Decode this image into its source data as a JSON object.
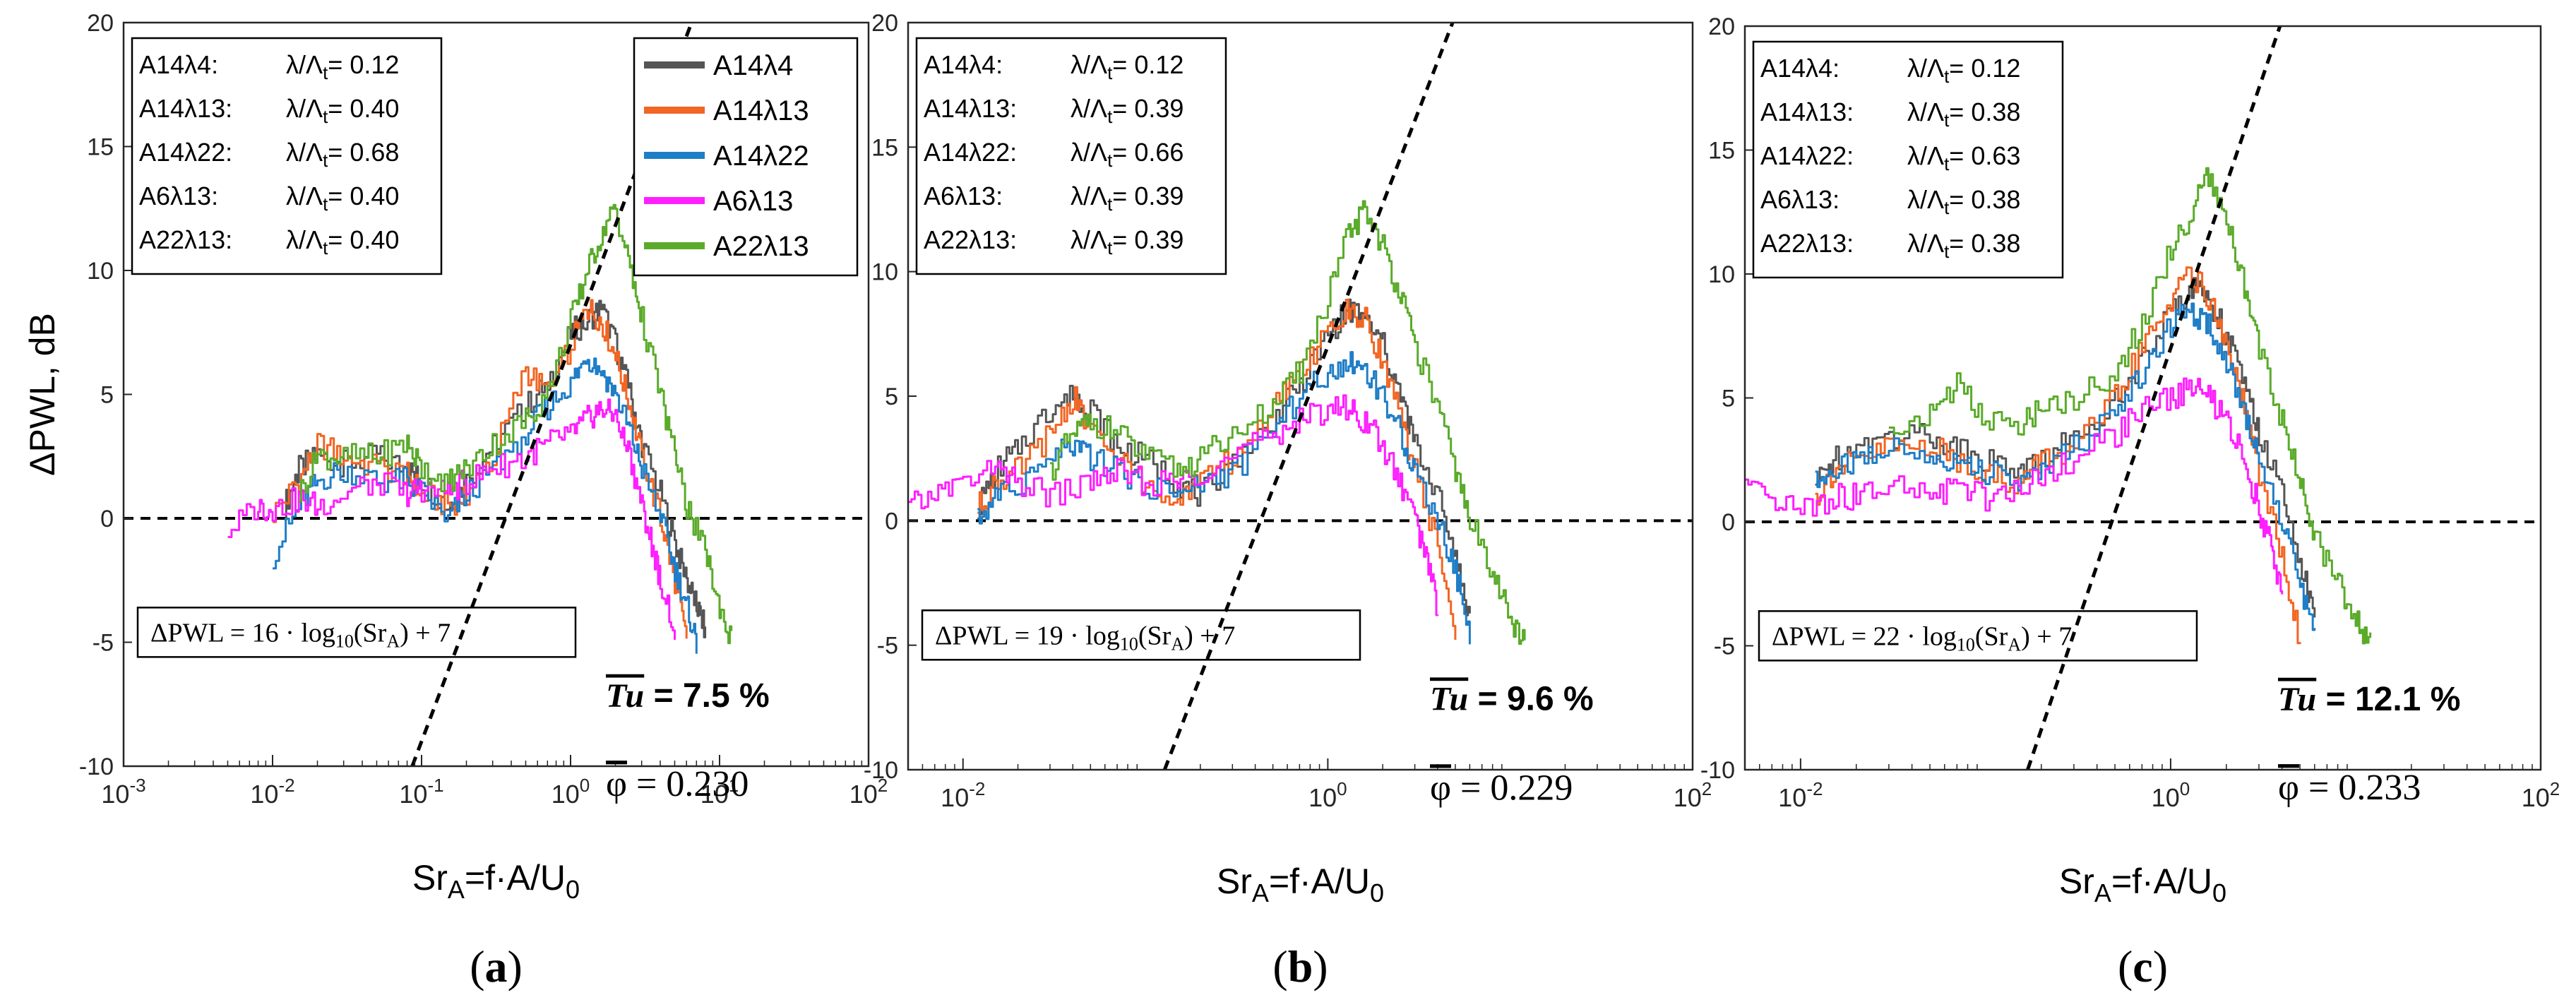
{
  "figure": {
    "ylabel": "ΔPWL, dB",
    "xlabel": "Sr_A=f·A/U_0",
    "legend": [
      "A14λ4",
      "A14λ13",
      "A14λ22",
      "A6λ13",
      "A22λ13"
    ],
    "colors": {
      "A14λ4": "#555555",
      "A14λ13": "#f26522",
      "A14λ22": "#1f7ec7",
      "A6λ13": "#ff1fff",
      "A22λ13": "#5aab2a"
    }
  },
  "chart_data": [
    {
      "type": "line",
      "panel_label": "(a)",
      "xscale": "log",
      "xlim": [
        0.001,
        100
      ],
      "ylim": [
        -10,
        20
      ],
      "xticks": [
        {
          "v": 0.001,
          "base": "10",
          "exp": "-3"
        },
        {
          "v": 0.01,
          "base": "10",
          "exp": "-2"
        },
        {
          "v": 0.1,
          "base": "10",
          "exp": "-1"
        },
        {
          "v": 1,
          "base": "10",
          "exp": "0"
        },
        {
          "v": 10,
          "base": "10",
          "exp": "1"
        },
        {
          "v": 100,
          "base": "10",
          "exp": "2"
        }
      ],
      "yticks": [
        -10,
        -5,
        0,
        5,
        10,
        15,
        20
      ],
      "ylabel": "ΔPWL, dB",
      "xlabel": "Sr_A=f·A/U_0",
      "legend_position": "top-right",
      "ratio_table": [
        {
          "name": "A14λ4:",
          "value": "λ/Λt= 0.12"
        },
        {
          "name": "A14λ13:",
          "value": "λ/Λt= 0.40"
        },
        {
          "name": "A14λ22:",
          "value": "λ/Λt= 0.68"
        },
        {
          "name": "A6λ13:",
          "value": "λ/Λt= 0.40"
        },
        {
          "name": "A22λ13:",
          "value": "λ/Λt= 0.40"
        }
      ],
      "fit_equation": "ΔPWL = 16 · log10(SrA) + 7",
      "fit": {
        "slope": 16,
        "intercept": 7
      },
      "tu_label": "Tu",
      "tu_value": "= 7.5 %",
      "phi_label": "φ",
      "phi_value": "= 0.230",
      "series": [
        {
          "name": "A14λ4",
          "x": [
            0.012,
            0.015,
            0.02,
            0.03,
            0.05,
            0.08,
            0.1,
            0.15,
            0.2,
            0.3,
            0.5,
            0.7,
            1.0,
            1.3,
            1.6,
            2.0,
            2.5,
            3.0,
            4.0,
            5.0,
            6.0,
            7.0,
            8.0
          ],
          "values": [
            0.5,
            2.0,
            2.5,
            2.2,
            2.5,
            2.0,
            1.5,
            0.5,
            1.5,
            3.0,
            4.5,
            5.5,
            7.5,
            8.0,
            8.5,
            7.0,
            5.0,
            3.0,
            1.0,
            -1.0,
            -2.5,
            -3.5,
            -4.5
          ]
        },
        {
          "name": "A14λ13",
          "x": [
            0.01,
            0.015,
            0.02,
            0.03,
            0.05,
            0.08,
            0.1,
            0.15,
            0.2,
            0.3,
            0.5,
            0.7,
            1.0,
            1.3,
            1.6,
            2.0,
            2.5,
            3.0,
            4.0,
            5.0,
            6.0
          ],
          "values": [
            0.2,
            1.5,
            3.0,
            2.5,
            2.0,
            1.8,
            1.0,
            0.5,
            1.0,
            2.5,
            6.0,
            5.0,
            7.0,
            8.5,
            8.0,
            6.5,
            4.5,
            2.5,
            0.0,
            -2.5,
            -5.0
          ]
        },
        {
          "name": "A14λ22",
          "x": [
            0.01,
            0.015,
            0.02,
            0.03,
            0.05,
            0.08,
            0.1,
            0.15,
            0.2,
            0.3,
            0.5,
            0.7,
            1.0,
            1.3,
            1.6,
            2.0,
            2.5,
            3.0,
            4.0,
            5.0,
            6.0,
            7.0
          ],
          "values": [
            -1.5,
            0.5,
            1.5,
            2.0,
            1.5,
            1.5,
            1.0,
            0.0,
            1.0,
            2.0,
            3.5,
            4.5,
            5.5,
            6.5,
            6.0,
            5.0,
            3.5,
            2.0,
            0.0,
            -2.0,
            -3.5,
            -5.0
          ]
        },
        {
          "name": "A6λ13",
          "x": [
            0.005,
            0.008,
            0.01,
            0.015,
            0.02,
            0.03,
            0.05,
            0.08,
            0.1,
            0.15,
            0.2,
            0.3,
            0.5,
            0.7,
            1.0,
            1.3,
            1.6,
            2.0,
            2.5,
            3.0,
            3.5,
            4.0,
            5.0
          ],
          "values": [
            -0.5,
            0.5,
            0.3,
            0.8,
            0.5,
            1.0,
            1.5,
            1.0,
            1.2,
            1.0,
            1.5,
            2.0,
            2.5,
            3.0,
            3.5,
            4.0,
            4.5,
            4.0,
            2.5,
            0.5,
            -1.0,
            -2.5,
            -4.5
          ]
        },
        {
          "name": "A22λ13",
          "x": [
            0.015,
            0.02,
            0.03,
            0.05,
            0.08,
            0.1,
            0.15,
            0.2,
            0.3,
            0.5,
            0.7,
            1.0,
            1.3,
            1.6,
            2.0,
            2.5,
            3.0,
            4.0,
            5.0,
            6.0,
            8.0,
            10.0,
            12.0
          ],
          "values": [
            1.0,
            2.5,
            2.5,
            2.5,
            3.0,
            2.0,
            1.5,
            2.0,
            3.0,
            4.0,
            5.0,
            8.0,
            10.0,
            11.5,
            12.5,
            10.0,
            8.0,
            5.0,
            2.5,
            0.5,
            -1.5,
            -3.5,
            -5.0
          ]
        }
      ]
    },
    {
      "type": "line",
      "panel_label": "(b)",
      "xscale": "log",
      "xlim": [
        0.005,
        100
      ],
      "ylim": [
        -10,
        20
      ],
      "xticks": [
        {
          "v": 0.01,
          "base": "10",
          "exp": "-2"
        },
        {
          "v": 1,
          "base": "10",
          "exp": "0"
        },
        {
          "v": 100,
          "base": "10",
          "exp": "2"
        }
      ],
      "yticks": [
        -10,
        -5,
        0,
        5,
        10,
        15,
        20
      ],
      "ylabel": "",
      "xlabel": "Sr_A=f·A/U_0",
      "ratio_table": [
        {
          "name": "A14λ4:",
          "value": "λ/Λt= 0.12"
        },
        {
          "name": "A14λ13:",
          "value": "λ/Λt= 0.39"
        },
        {
          "name": "A14λ22:",
          "value": "λ/Λt= 0.66"
        },
        {
          "name": "A6λ13:",
          "value": "λ/Λt= 0.39"
        },
        {
          "name": "A22λ13:",
          "value": "λ/Λt= 0.39"
        }
      ],
      "fit_equation": "ΔPWL = 19 · log10(SrA) + 7",
      "fit": {
        "slope": 19,
        "intercept": 7
      },
      "tu_label": "Tu",
      "tu_value": "= 9.6 %",
      "phi_label": "φ",
      "phi_value": "= 0.229",
      "series": [
        {
          "name": "A14λ4",
          "x": [
            0.012,
            0.015,
            0.02,
            0.03,
            0.04,
            0.05,
            0.07,
            0.1,
            0.15,
            0.2,
            0.3,
            0.5,
            0.7,
            1.0,
            1.3,
            1.6,
            2.0,
            2.5,
            3.0,
            4.0,
            5.0,
            6.0
          ],
          "values": [
            0.5,
            2.0,
            3.0,
            4.5,
            5.0,
            4.5,
            3.0,
            2.5,
            1.5,
            1.0,
            2.5,
            4.0,
            5.5,
            7.5,
            8.5,
            8.0,
            7.0,
            5.0,
            3.0,
            1.0,
            -1.5,
            -4.0
          ]
        },
        {
          "name": "A14λ13",
          "x": [
            0.012,
            0.015,
            0.02,
            0.03,
            0.04,
            0.05,
            0.07,
            0.1,
            0.15,
            0.2,
            0.3,
            0.5,
            0.7,
            1.0,
            1.3,
            1.6,
            2.0,
            2.5,
            3.0,
            4.0,
            5.0
          ],
          "values": [
            0.5,
            1.5,
            2.0,
            3.5,
            5.0,
            3.5,
            2.5,
            1.5,
            1.0,
            1.5,
            2.5,
            4.5,
            6.0,
            7.5,
            8.5,
            8.0,
            6.5,
            4.0,
            2.0,
            -1.0,
            -5.0
          ]
        },
        {
          "name": "A14λ22",
          "x": [
            0.012,
            0.015,
            0.02,
            0.03,
            0.04,
            0.05,
            0.07,
            0.1,
            0.15,
            0.2,
            0.3,
            0.5,
            0.7,
            1.0,
            1.3,
            1.6,
            2.0,
            2.5,
            3.0,
            4.0,
            5.0,
            6.0
          ],
          "values": [
            0.0,
            1.0,
            1.5,
            2.5,
            3.0,
            2.5,
            2.0,
            1.5,
            1.0,
            1.5,
            2.0,
            3.5,
            5.0,
            6.0,
            6.5,
            6.0,
            5.0,
            3.5,
            2.0,
            0.0,
            -2.0,
            -4.5
          ]
        },
        {
          "name": "A6λ13",
          "x": [
            0.005,
            0.007,
            0.01,
            0.015,
            0.02,
            0.03,
            0.05,
            0.07,
            0.1,
            0.15,
            0.2,
            0.3,
            0.5,
            0.7,
            1.0,
            1.3,
            1.6,
            2.0,
            2.5,
            3.0,
            3.5,
            4.0
          ],
          "values": [
            0.5,
            1.0,
            1.5,
            2.0,
            1.5,
            1.0,
            1.5,
            2.0,
            1.5,
            1.5,
            2.0,
            2.5,
            3.5,
            4.0,
            4.5,
            4.5,
            4.0,
            3.0,
            1.5,
            0.0,
            -1.5,
            -3.5
          ]
        },
        {
          "name": "A22λ13",
          "x": [
            0.03,
            0.04,
            0.05,
            0.07,
            0.1,
            0.15,
            0.2,
            0.3,
            0.5,
            0.7,
            1.0,
            1.3,
            1.6,
            2.0,
            2.5,
            3.0,
            4.0,
            5.0,
            6.0,
            8.0,
            10.0,
            12.0
          ],
          "values": [
            2.0,
            3.5,
            4.0,
            3.5,
            2.5,
            2.0,
            2.5,
            3.5,
            4.5,
            6.0,
            9.0,
            11.5,
            12.5,
            11.0,
            9.0,
            7.0,
            4.5,
            2.0,
            0.0,
            -2.0,
            -4.0,
            -5.0
          ]
        }
      ]
    },
    {
      "type": "line",
      "panel_label": "(c)",
      "xscale": "log",
      "xlim": [
        0.005,
        100
      ],
      "ylim": [
        -10,
        20
      ],
      "xticks": [
        {
          "v": 0.01,
          "base": "10",
          "exp": "-2"
        },
        {
          "v": 1,
          "base": "10",
          "exp": "0"
        },
        {
          "v": 100,
          "base": "10",
          "exp": "2"
        }
      ],
      "yticks": [
        -10,
        -5,
        0,
        5,
        10,
        15,
        20
      ],
      "ylabel": "",
      "xlabel": "Sr_A=f·A/U_0",
      "ratio_table": [
        {
          "name": "A14λ4:",
          "value": "λ/Λt= 0.12"
        },
        {
          "name": "A14λ13:",
          "value": "λ/Λt= 0.38"
        },
        {
          "name": "A14λ22:",
          "value": "λ/Λt= 0.63"
        },
        {
          "name": "A6λ13:",
          "value": "λ/Λt= 0.38"
        },
        {
          "name": "A22λ13:",
          "value": "λ/Λt= 0.38"
        }
      ],
      "fit_equation": "ΔPWL = 22 · log10(SrA) + 7",
      "fit": {
        "slope": 22,
        "intercept": 7
      },
      "tu_label": "Tu",
      "tu_value": "= 12.1 %",
      "phi_label": "φ",
      "phi_value": "= 0.233",
      "series": [
        {
          "name": "A14λ4",
          "x": [
            0.012,
            0.015,
            0.02,
            0.03,
            0.05,
            0.07,
            0.1,
            0.15,
            0.2,
            0.3,
            0.5,
            0.7,
            1.0,
            1.3,
            1.6,
            2.0,
            2.5,
            3.0,
            4.0,
            5.0,
            6.0
          ],
          "values": [
            1.5,
            2.5,
            3.0,
            3.5,
            3.5,
            3.0,
            2.5,
            2.0,
            2.5,
            3.5,
            5.0,
            6.5,
            8.5,
            9.5,
            9.0,
            7.5,
            5.5,
            3.5,
            1.0,
            -1.5,
            -4.0
          ]
        },
        {
          "name": "A14λ13",
          "x": [
            0.012,
            0.015,
            0.02,
            0.03,
            0.05,
            0.07,
            0.1,
            0.15,
            0.2,
            0.3,
            0.5,
            0.7,
            1.0,
            1.3,
            1.6,
            2.0,
            2.5,
            3.0,
            4.0,
            5.0
          ],
          "values": [
            1.0,
            2.0,
            2.5,
            3.0,
            3.0,
            2.5,
            2.0,
            1.5,
            2.5,
            3.0,
            5.0,
            7.0,
            9.0,
            10.0,
            9.0,
            7.0,
            4.5,
            2.0,
            -1.5,
            -5.0
          ]
        },
        {
          "name": "A14λ22",
          "x": [
            0.012,
            0.015,
            0.02,
            0.03,
            0.05,
            0.07,
            0.1,
            0.15,
            0.2,
            0.3,
            0.5,
            0.7,
            1.0,
            1.3,
            1.6,
            2.0,
            2.5,
            3.0,
            4.0,
            5.0,
            6.0
          ],
          "values": [
            1.5,
            2.0,
            2.5,
            3.0,
            2.5,
            2.5,
            2.0,
            1.5,
            2.0,
            3.0,
            4.5,
            6.0,
            8.0,
            8.5,
            8.0,
            6.5,
            4.5,
            2.5,
            0.0,
            -2.5,
            -4.5
          ]
        },
        {
          "name": "A6λ13",
          "x": [
            0.005,
            0.007,
            0.01,
            0.015,
            0.02,
            0.03,
            0.05,
            0.07,
            0.1,
            0.15,
            0.2,
            0.3,
            0.5,
            0.7,
            1.0,
            1.3,
            1.6,
            2.0,
            2.5,
            3.0,
            3.5,
            4.0
          ],
          "values": [
            1.5,
            0.5,
            0.5,
            1.0,
            1.0,
            1.5,
            1.0,
            1.5,
            1.0,
            1.5,
            2.0,
            2.5,
            3.5,
            4.5,
            5.0,
            5.5,
            5.0,
            4.0,
            2.5,
            0.5,
            -1.0,
            -3.0
          ]
        },
        {
          "name": "A22λ13",
          "x": [
            0.03,
            0.05,
            0.07,
            0.1,
            0.15,
            0.2,
            0.3,
            0.5,
            0.7,
            1.0,
            1.3,
            1.6,
            2.0,
            2.5,
            3.0,
            4.0,
            5.0,
            6.0,
            8.0,
            10.0,
            12.0
          ],
          "values": [
            3.5,
            4.5,
            5.5,
            4.0,
            4.0,
            4.5,
            5.0,
            6.0,
            8.0,
            11.0,
            12.5,
            14.0,
            12.0,
            9.5,
            7.0,
            4.0,
            1.5,
            -0.5,
            -2.5,
            -4.0,
            -5.0
          ]
        }
      ]
    }
  ]
}
